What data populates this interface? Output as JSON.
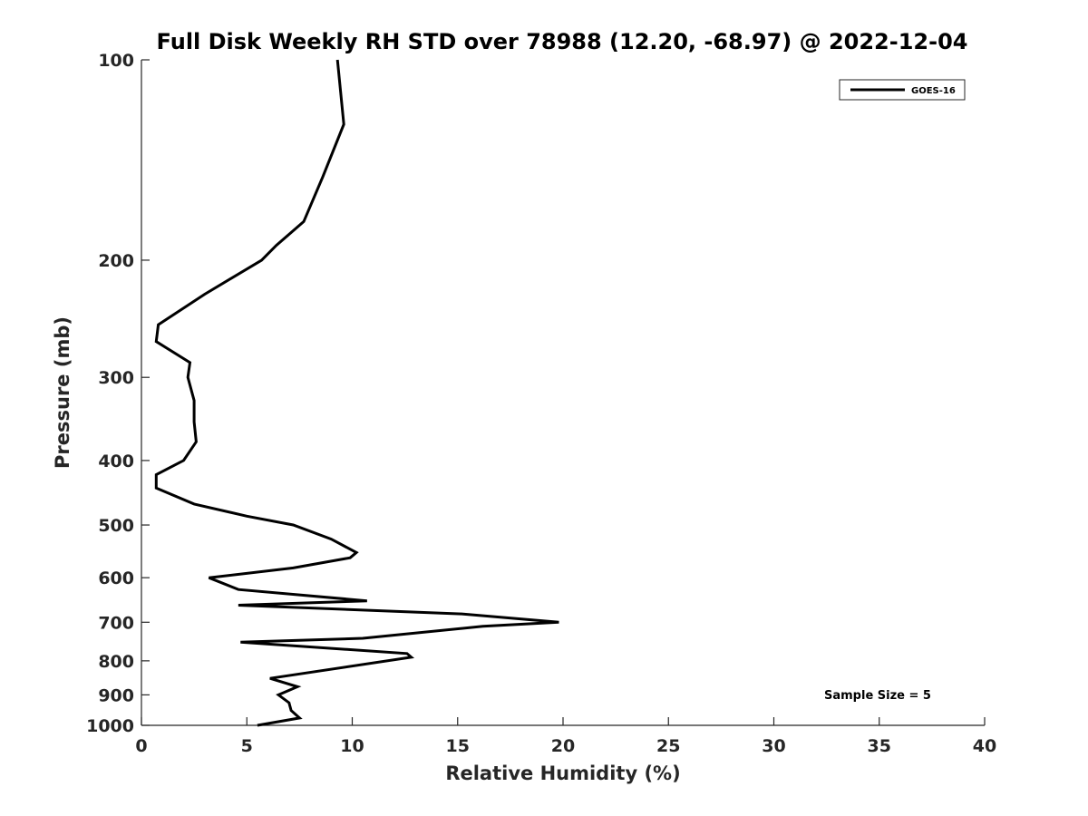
{
  "chart_data": {
    "type": "line",
    "title": "Full Disk Weekly RH STD over 78988 (12.20, -68.97) @ 2022-12-04",
    "xlabel": "Relative Humidity (%)",
    "ylabel": "Pressure (mb)",
    "xlim": [
      0,
      40
    ],
    "ylim": [
      100,
      1000
    ],
    "y_scale": "log",
    "y_reversed": true,
    "x_ticks": [
      0,
      5,
      10,
      15,
      20,
      25,
      30,
      35,
      40
    ],
    "y_ticks": [
      100,
      200,
      300,
      400,
      500,
      600,
      700,
      800,
      900,
      1000
    ],
    "grid": false,
    "legend": {
      "placement": "top-right",
      "entries": [
        "GOES-16"
      ]
    },
    "annotations": [
      {
        "text": "Sample Size = 5"
      }
    ],
    "series": [
      {
        "name": "GOES-16",
        "color": "#000000",
        "points": [
          [
            9.3,
            100
          ],
          [
            9.6,
            125
          ],
          [
            8.6,
            150
          ],
          [
            7.7,
            175
          ],
          [
            6.4,
            190
          ],
          [
            5.7,
            200
          ],
          [
            3.0,
            225
          ],
          [
            0.8,
            250
          ],
          [
            0.7,
            265
          ],
          [
            2.3,
            285
          ],
          [
            2.2,
            300
          ],
          [
            2.5,
            325
          ],
          [
            2.5,
            350
          ],
          [
            2.6,
            375
          ],
          [
            2.0,
            400
          ],
          [
            0.7,
            420
          ],
          [
            0.7,
            440
          ],
          [
            2.5,
            465
          ],
          [
            5.0,
            485
          ],
          [
            7.2,
            500
          ],
          [
            9.0,
            525
          ],
          [
            10.2,
            550
          ],
          [
            9.9,
            560
          ],
          [
            7.2,
            580
          ],
          [
            3.2,
            600
          ],
          [
            4.6,
            625
          ],
          [
            10.7,
            650
          ],
          [
            4.6,
            660
          ],
          [
            15.2,
            680
          ],
          [
            19.8,
            700
          ],
          [
            16.2,
            710
          ],
          [
            10.5,
            740
          ],
          [
            4.7,
            750
          ],
          [
            12.6,
            780
          ],
          [
            12.8,
            790
          ],
          [
            6.1,
            850
          ],
          [
            7.4,
            875
          ],
          [
            6.5,
            900
          ],
          [
            7.0,
            925
          ],
          [
            7.1,
            950
          ],
          [
            7.5,
            975
          ],
          [
            5.5,
            1000
          ]
        ]
      }
    ]
  }
}
